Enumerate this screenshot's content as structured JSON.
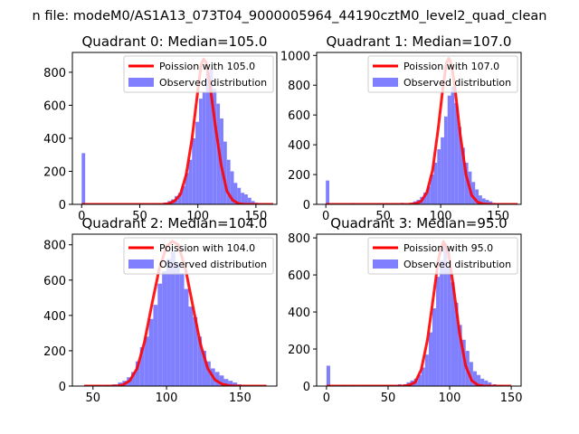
{
  "figure": {
    "suptitle": "n file: modeM0/AS1A13_073T04_9000005964_44190cztM0_level2_quad_clean"
  },
  "colors": {
    "hist": "#8080ff",
    "poisson": "#ff0000",
    "poisson_overlap": "#ff9090",
    "text": "#000000",
    "axis": "#000000"
  },
  "chart_data": [
    {
      "type": "bar",
      "title": "Quadrant 0: Median=105.0",
      "legend": [
        "Poission with 105.0",
        "Observed distribution"
      ],
      "legend_placement": "upper right",
      "xlim": [
        -8,
        168
      ],
      "ylim": [
        0,
        920
      ],
      "xticks": [
        0,
        50,
        100,
        150
      ],
      "yticks": [
        0,
        200,
        400,
        600,
        800
      ],
      "bin_width": 3,
      "hist": [
        [
          0,
          310
        ],
        [
          51,
          5
        ],
        [
          60,
          5
        ],
        [
          65,
          5
        ],
        [
          70,
          10
        ],
        [
          74,
          20
        ],
        [
          77,
          30
        ],
        [
          80,
          50
        ],
        [
          83,
          70
        ],
        [
          86,
          110
        ],
        [
          89,
          190
        ],
        [
          92,
          270
        ],
        [
          95,
          400
        ],
        [
          98,
          500
        ],
        [
          101,
          640
        ],
        [
          104,
          680
        ],
        [
          107,
          800
        ],
        [
          110,
          820
        ],
        [
          113,
          700
        ],
        [
          116,
          610
        ],
        [
          119,
          520
        ],
        [
          122,
          380
        ],
        [
          125,
          270
        ],
        [
          128,
          200
        ],
        [
          131,
          130
        ],
        [
          134,
          100
        ],
        [
          137,
          70
        ],
        [
          140,
          60
        ],
        [
          143,
          40
        ],
        [
          146,
          20
        ],
        [
          149,
          10
        ],
        [
          152,
          5
        ]
      ],
      "poisson": [
        [
          0,
          0
        ],
        [
          70,
          0
        ],
        [
          75,
          5
        ],
        [
          80,
          20
        ],
        [
          85,
          60
        ],
        [
          90,
          180
        ],
        [
          95,
          400
        ],
        [
          100,
          690
        ],
        [
          103,
          850
        ],
        [
          105,
          880
        ],
        [
          107,
          860
        ],
        [
          110,
          750
        ],
        [
          115,
          480
        ],
        [
          120,
          240
        ],
        [
          125,
          80
        ],
        [
          130,
          25
        ],
        [
          135,
          5
        ],
        [
          140,
          0
        ],
        [
          165,
          0
        ]
      ]
    },
    {
      "type": "bar",
      "title": "Quadrant 1: Median=107.0",
      "legend": [
        "Poission with 107.0",
        "Observed distribution"
      ],
      "legend_placement": "upper right",
      "xlim": [
        -8,
        170
      ],
      "ylim": [
        0,
        1020
      ],
      "xticks": [
        0,
        50,
        100,
        150
      ],
      "yticks": [
        0,
        200,
        400,
        600,
        800,
        1000
      ],
      "bin_width": 3,
      "hist": [
        [
          0,
          160
        ],
        [
          22,
          8
        ],
        [
          45,
          5
        ],
        [
          52,
          5
        ],
        [
          58,
          5
        ],
        [
          65,
          10
        ],
        [
          72,
          10
        ],
        [
          76,
          20
        ],
        [
          79,
          30
        ],
        [
          82,
          50
        ],
        [
          85,
          80
        ],
        [
          88,
          120
        ],
        [
          91,
          200
        ],
        [
          94,
          280
        ],
        [
          97,
          370
        ],
        [
          100,
          450
        ],
        [
          103,
          590
        ],
        [
          106,
          730
        ],
        [
          109,
          790
        ],
        [
          112,
          680
        ],
        [
          115,
          520
        ],
        [
          118,
          380
        ],
        [
          121,
          280
        ],
        [
          124,
          220
        ],
        [
          127,
          150
        ],
        [
          130,
          100
        ],
        [
          133,
          60
        ],
        [
          136,
          40
        ],
        [
          139,
          30
        ],
        [
          142,
          20
        ],
        [
          145,
          10
        ],
        [
          149,
          5
        ],
        [
          155,
          5
        ]
      ],
      "poisson": [
        [
          0,
          0
        ],
        [
          72,
          0
        ],
        [
          78,
          5
        ],
        [
          83,
          20
        ],
        [
          88,
          80
        ],
        [
          93,
          230
        ],
        [
          98,
          520
        ],
        [
          102,
          790
        ],
        [
          105,
          950
        ],
        [
          107,
          980
        ],
        [
          109,
          950
        ],
        [
          112,
          810
        ],
        [
          117,
          470
        ],
        [
          122,
          200
        ],
        [
          127,
          60
        ],
        [
          132,
          15
        ],
        [
          137,
          3
        ],
        [
          143,
          0
        ],
        [
          167,
          0
        ]
      ]
    },
    {
      "type": "bar",
      "title": "Quadrant 2: Median=104.0",
      "legend": [
        "Poission with 104.0",
        "Observed distribution"
      ],
      "legend_placement": "upper right",
      "xlim": [
        36,
        175
      ],
      "ylim": [
        0,
        860
      ],
      "xticks": [
        50,
        100,
        150
      ],
      "yticks": [
        0,
        200,
        400,
        600,
        800
      ],
      "bin_width": 3,
      "hist": [
        [
          44,
          5
        ],
        [
          52,
          5
        ],
        [
          58,
          5
        ],
        [
          63,
          10
        ],
        [
          67,
          20
        ],
        [
          70,
          30
        ],
        [
          73,
          50
        ],
        [
          76,
          80
        ],
        [
          79,
          140
        ],
        [
          82,
          220
        ],
        [
          85,
          280
        ],
        [
          88,
          380
        ],
        [
          91,
          460
        ],
        [
          94,
          580
        ],
        [
          97,
          650
        ],
        [
          100,
          720
        ],
        [
          103,
          760
        ],
        [
          106,
          700
        ],
        [
          109,
          640
        ],
        [
          112,
          550
        ],
        [
          115,
          450
        ],
        [
          118,
          390
        ],
        [
          121,
          280
        ],
        [
          124,
          200
        ],
        [
          127,
          140
        ],
        [
          130,
          100
        ],
        [
          133,
          80
        ],
        [
          136,
          60
        ],
        [
          139,
          40
        ],
        [
          142,
          30
        ],
        [
          145,
          20
        ],
        [
          148,
          10
        ],
        [
          152,
          5
        ]
      ],
      "poisson": [
        [
          44,
          0
        ],
        [
          65,
          0
        ],
        [
          70,
          5
        ],
        [
          75,
          30
        ],
        [
          80,
          100
        ],
        [
          85,
          250
        ],
        [
          90,
          460
        ],
        [
          95,
          660
        ],
        [
          100,
          790
        ],
        [
          104,
          820
        ],
        [
          108,
          800
        ],
        [
          113,
          660
        ],
        [
          118,
          450
        ],
        [
          123,
          240
        ],
        [
          128,
          100
        ],
        [
          133,
          35
        ],
        [
          138,
          10
        ],
        [
          143,
          2
        ],
        [
          148,
          0
        ],
        [
          168,
          0
        ]
      ]
    },
    {
      "type": "bar",
      "title": "Quadrant 3: Median=95.0",
      "legend": [
        "Poission with 95.0",
        "Observed distribution"
      ],
      "legend_placement": "upper right",
      "xlim": [
        -8,
        158
      ],
      "ylim": [
        0,
        820
      ],
      "xticks": [
        0,
        50,
        100,
        150
      ],
      "yticks": [
        0,
        200,
        400,
        600,
        800
      ],
      "bin_width": 3,
      "hist": [
        [
          0,
          110
        ],
        [
          12,
          5
        ],
        [
          20,
          5
        ],
        [
          28,
          5
        ],
        [
          34,
          5
        ],
        [
          40,
          5
        ],
        [
          46,
          5
        ],
        [
          52,
          5
        ],
        [
          58,
          10
        ],
        [
          62,
          10
        ],
        [
          65,
          20
        ],
        [
          68,
          30
        ],
        [
          71,
          40
        ],
        [
          74,
          60
        ],
        [
          77,
          100
        ],
        [
          80,
          170
        ],
        [
          83,
          290
        ],
        [
          86,
          420
        ],
        [
          89,
          590
        ],
        [
          92,
          680
        ],
        [
          95,
          770
        ],
        [
          98,
          640
        ],
        [
          101,
          560
        ],
        [
          104,
          450
        ],
        [
          107,
          330
        ],
        [
          110,
          250
        ],
        [
          113,
          190
        ],
        [
          116,
          130
        ],
        [
          119,
          80
        ],
        [
          122,
          60
        ],
        [
          125,
          40
        ],
        [
          128,
          30
        ],
        [
          131,
          20
        ],
        [
          135,
          10
        ],
        [
          140,
          5
        ]
      ],
      "poisson": [
        [
          0,
          0
        ],
        [
          62,
          0
        ],
        [
          67,
          5
        ],
        [
          72,
          20
        ],
        [
          77,
          90
        ],
        [
          82,
          250
        ],
        [
          87,
          490
        ],
        [
          91,
          690
        ],
        [
          95,
          780
        ],
        [
          99,
          720
        ],
        [
          103,
          540
        ],
        [
          108,
          290
        ],
        [
          113,
          110
        ],
        [
          118,
          30
        ],
        [
          123,
          5
        ],
        [
          128,
          0
        ],
        [
          150,
          0
        ]
      ]
    }
  ]
}
